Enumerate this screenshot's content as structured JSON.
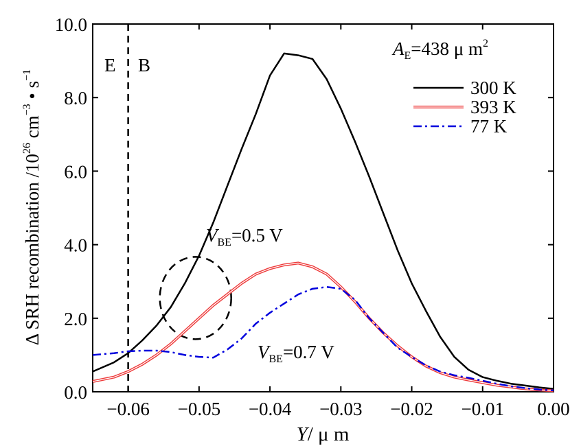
{
  "chart_data": {
    "type": "line",
    "xlabel": {
      "var": "Y",
      "unit": "/ μ m"
    },
    "ylabel": {
      "main": "Δ SRH  recombination /10",
      "exp": "26",
      "unit": "  cm",
      "unit_exp1": "−3",
      "dot": " • s",
      "unit_exp2": "−1"
    },
    "xlim": [
      -0.065,
      0.0
    ],
    "ylim": [
      0.0,
      10.0
    ],
    "x_ticks": [
      -0.06,
      -0.05,
      -0.04,
      -0.03,
      -0.02,
      -0.01,
      0.0
    ],
    "x_tick_labels": [
      "−0.06",
      "−0.05",
      "−0.04",
      "−0.03",
      "−0.02",
      "−0.01",
      "0.00"
    ],
    "y_ticks": [
      0,
      2,
      4,
      6,
      8,
      10
    ],
    "y_tick_labels": [
      "0.0",
      "2.0",
      "4.0",
      "6.0",
      "8.0",
      "10.0"
    ],
    "grid": false,
    "legend_position": "top-right",
    "legend_header": {
      "main": "A",
      "sub": "E",
      "rest": "=438  μ m",
      "sup": "2"
    },
    "series": [
      {
        "name": "300  K",
        "color": "#000000",
        "style": "solid",
        "x": [
          -0.065,
          -0.062,
          -0.06,
          -0.058,
          -0.056,
          -0.054,
          -0.052,
          -0.05,
          -0.048,
          -0.046,
          -0.044,
          -0.042,
          -0.04,
          -0.038,
          -0.036,
          -0.034,
          -0.032,
          -0.03,
          -0.028,
          -0.026,
          -0.024,
          -0.022,
          -0.02,
          -0.018,
          -0.016,
          -0.014,
          -0.012,
          -0.01,
          -0.008,
          -0.006,
          -0.004,
          -0.002,
          0.0
        ],
        "y": [
          0.55,
          0.8,
          1.05,
          1.4,
          1.8,
          2.3,
          2.95,
          3.7,
          4.6,
          5.6,
          6.6,
          7.55,
          8.6,
          9.2,
          9.15,
          9.05,
          8.5,
          7.7,
          6.8,
          5.85,
          4.85,
          3.85,
          2.95,
          2.2,
          1.5,
          0.95,
          0.6,
          0.4,
          0.3,
          0.22,
          0.17,
          0.12,
          0.08
        ]
      },
      {
        "name": "393  K",
        "color": "#ee3b3b",
        "style": "double",
        "x": [
          -0.065,
          -0.062,
          -0.06,
          -0.058,
          -0.056,
          -0.054,
          -0.052,
          -0.05,
          -0.048,
          -0.046,
          -0.044,
          -0.042,
          -0.04,
          -0.038,
          -0.036,
          -0.034,
          -0.032,
          -0.03,
          -0.028,
          -0.026,
          -0.024,
          -0.022,
          -0.02,
          -0.018,
          -0.016,
          -0.014,
          -0.012,
          -0.01,
          -0.008,
          -0.006,
          -0.004,
          -0.002,
          0.0
        ],
        "y": [
          0.28,
          0.4,
          0.55,
          0.75,
          1.0,
          1.3,
          1.65,
          2.0,
          2.35,
          2.65,
          2.95,
          3.2,
          3.35,
          3.45,
          3.5,
          3.4,
          3.2,
          2.85,
          2.45,
          2.0,
          1.6,
          1.25,
          0.95,
          0.7,
          0.52,
          0.4,
          0.32,
          0.25,
          0.18,
          0.13,
          0.08,
          0.05,
          0.03
        ]
      },
      {
        "name": "77  K",
        "color": "#0000dd",
        "style": "dashdot",
        "x": [
          -0.065,
          -0.062,
          -0.06,
          -0.058,
          -0.056,
          -0.054,
          -0.052,
          -0.05,
          -0.048,
          -0.046,
          -0.044,
          -0.042,
          -0.04,
          -0.038,
          -0.036,
          -0.034,
          -0.032,
          -0.03,
          -0.028,
          -0.026,
          -0.024,
          -0.022,
          -0.02,
          -0.018,
          -0.016,
          -0.014,
          -0.012,
          -0.01,
          -0.008,
          -0.006,
          -0.004,
          -0.002,
          0.0
        ],
        "y": [
          1.0,
          1.05,
          1.1,
          1.12,
          1.12,
          1.08,
          1.0,
          0.95,
          0.93,
          1.15,
          1.45,
          1.85,
          2.15,
          2.4,
          2.65,
          2.8,
          2.85,
          2.8,
          2.5,
          2.0,
          1.6,
          1.2,
          0.95,
          0.72,
          0.55,
          0.45,
          0.38,
          0.3,
          0.22,
          0.15,
          0.1,
          0.06,
          0.04
        ]
      }
    ],
    "annotations": {
      "region_left": "E",
      "region_right": "B",
      "vbe_high": {
        "main": "V",
        "sub": "BE",
        "rest": "=0.5 V"
      },
      "vbe_low": {
        "main": "V",
        "sub": "BE",
        "rest": "=0.7 V"
      },
      "boundary_x": -0.06,
      "circle_center": {
        "x": -0.0505,
        "y": 2.55
      }
    }
  }
}
